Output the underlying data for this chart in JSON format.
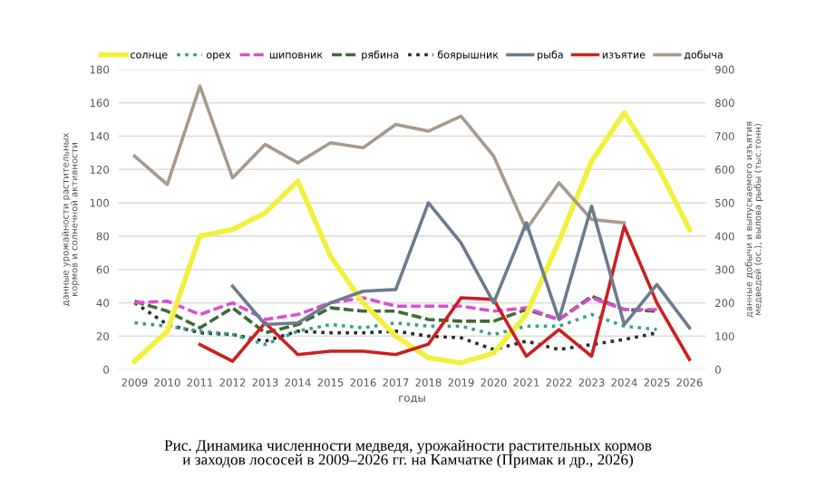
{
  "chart_data": {
    "type": "line",
    "xlabel": "годы",
    "ylabel": "данные урожайности растительных кормов и солнечной активности",
    "y2label": "данные добычи и выпускаемого изъятия медведей (ос.), вылова рыбы (тыс.тонн)",
    "categories": [
      "2009",
      "2010",
      "2011",
      "2012",
      "2013",
      "2014",
      "2015",
      "2016",
      "2017",
      "2018",
      "2019",
      "2020",
      "2021",
      "2022",
      "2023",
      "2024",
      "2025",
      "2026"
    ],
    "series": [
      {
        "name": "солнце",
        "color": "#f2f03c",
        "line_style": "solid",
        "values": [
          5,
          23,
          80,
          84,
          94,
          113,
          68,
          40,
          20,
          7,
          4,
          10,
          33,
          77,
          125,
          154,
          123,
          84
        ]
      },
      {
        "name": "орех",
        "color": "#3aa08a",
        "line_style": "dotted",
        "values": [
          28,
          26,
          23,
          21,
          15,
          23,
          27,
          25,
          28,
          26,
          26,
          21,
          26,
          26,
          33,
          26,
          24,
          null
        ]
      },
      {
        "name": "шиповник",
        "color": "#d94fd0",
        "line_style": "dashed",
        "values": [
          40,
          41,
          33,
          40,
          30,
          33,
          40,
          43,
          38,
          38,
          38,
          35,
          37,
          30,
          43,
          36,
          36,
          null
        ]
      },
      {
        "name": "рябина",
        "color": "#3d6b35",
        "line_style": "dashed",
        "values": [
          41,
          35,
          25,
          37,
          22,
          27,
          37,
          35,
          35,
          30,
          29,
          29,
          36,
          30,
          44,
          36,
          35,
          null
        ]
      },
      {
        "name": "боярышник",
        "color": "#2b2b2b",
        "line_style": "dotted",
        "values": [
          40,
          27,
          22,
          21,
          17,
          23,
          22,
          22,
          23,
          20,
          19,
          12,
          17,
          12,
          15,
          18,
          22,
          null
        ]
      },
      {
        "name": "рыба",
        "color": "#6b7b8f",
        "line_style": "solid",
        "axis": "y2",
        "values": [
          null,
          null,
          null,
          250,
          135,
          140,
          200,
          235,
          240,
          500,
          380,
          200,
          440,
          150,
          490,
          135,
          255,
          125
        ]
      },
      {
        "name": "изъятие",
        "color": "#cc1f1f",
        "line_style": "solid",
        "axis": "y2",
        "values": [
          null,
          null,
          75,
          25,
          140,
          45,
          55,
          55,
          45,
          76,
          215,
          210,
          40,
          120,
          40,
          430,
          200,
          30
        ]
      },
      {
        "name": "добыча",
        "color": "#a89a8c",
        "line_style": "solid",
        "axis": "y2",
        "values": [
          640,
          555,
          850,
          575,
          675,
          620,
          680,
          665,
          735,
          715,
          760,
          640,
          420,
          560,
          450,
          440,
          null,
          null
        ]
      }
    ],
    "ylim": [
      0,
      180
    ],
    "yticks": [
      0,
      20,
      40,
      60,
      80,
      100,
      120,
      140,
      160,
      180
    ],
    "y2lim": [
      0,
      900
    ],
    "y2ticks": [
      0,
      100,
      200,
      300,
      400,
      500,
      600,
      700,
      800,
      900
    ],
    "grid": "y",
    "legend": "top",
    "marker": "none",
    "annotations": [
      "Рис. Динамика численности медведя, урожайности растительных кормов и заходов лососей в 2009–2026 гг. на Камчатке (Примак и др., 2026)"
    ]
  }
}
